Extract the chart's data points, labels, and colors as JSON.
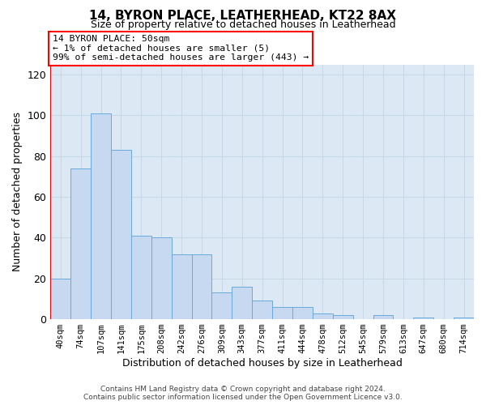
{
  "title1": "14, BYRON PLACE, LEATHERHEAD, KT22 8AX",
  "title2": "Size of property relative to detached houses in Leatherhead",
  "xlabel": "Distribution of detached houses by size in Leatherhead",
  "ylabel": "Number of detached properties",
  "bar_labels": [
    "40sqm",
    "74sqm",
    "107sqm",
    "141sqm",
    "175sqm",
    "208sqm",
    "242sqm",
    "276sqm",
    "309sqm",
    "343sqm",
    "377sqm",
    "411sqm",
    "444sqm",
    "478sqm",
    "512sqm",
    "545sqm",
    "579sqm",
    "613sqm",
    "647sqm",
    "680sqm",
    "714sqm"
  ],
  "bar_values": [
    20,
    74,
    101,
    83,
    41,
    40,
    32,
    32,
    13,
    16,
    9,
    6,
    6,
    3,
    2,
    0,
    2,
    0,
    1,
    0,
    1
  ],
  "bar_color": "#c6d9f0",
  "bar_edge_color": "#6aaadc",
  "annotation_line1": "14 BYRON PLACE: 50sqm",
  "annotation_line2": "← 1% of detached houses are smaller (5)",
  "annotation_line3": "99% of semi-detached houses are larger (443) →",
  "ylim": [
    0,
    125
  ],
  "yticks": [
    0,
    20,
    40,
    60,
    80,
    100,
    120
  ],
  "grid_color": "#c8d8e8",
  "bg_color": "#dce9f5",
  "footer": "Contains HM Land Registry data © Crown copyright and database right 2024.\nContains public sector information licensed under the Open Government Licence v3.0.",
  "fig_width": 6.0,
  "fig_height": 5.0
}
